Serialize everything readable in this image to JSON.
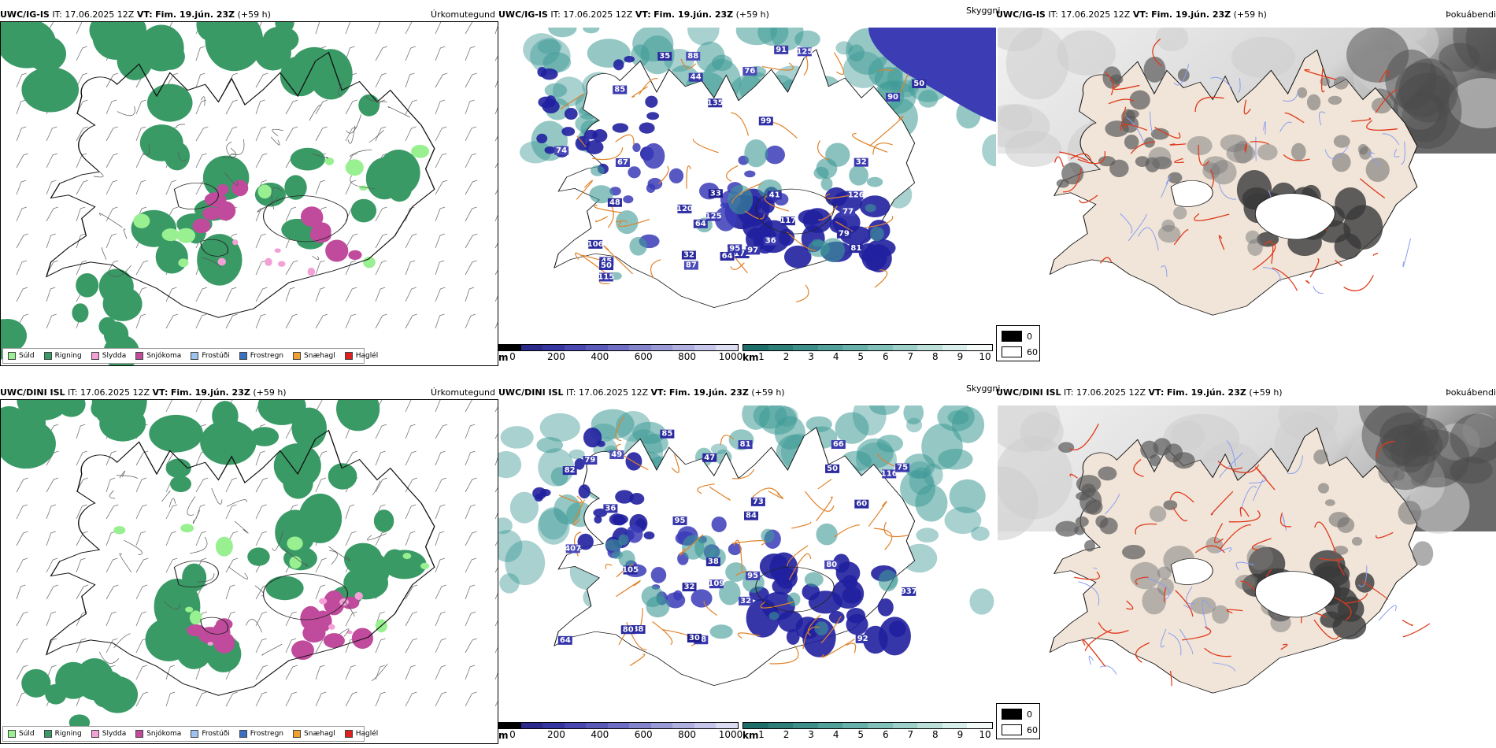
{
  "rows": [
    {
      "model": "UWC/IG-IS",
      "it_label": "IT:",
      "it_value": "17.06.2025 12Z",
      "vt_label": "VT:",
      "vt_value": "Fim. 19.jún. 23Z",
      "lead": "(+59 h)",
      "precip_title": "Úrkomutegund",
      "vis_title": "Skyggni",
      "cloud_title": "Þokuábendi",
      "vis_labels": [
        "135",
        "125",
        "120",
        "115",
        "125",
        "117",
        "126",
        "87",
        "64",
        "32",
        "81",
        "67",
        "171",
        "44",
        "106",
        "85",
        "88",
        "99",
        "48",
        "45",
        "90",
        "77",
        "50",
        "95",
        "33",
        "35",
        "41",
        "64",
        "32",
        "36",
        "74",
        "76",
        "79",
        "91",
        "50",
        "97"
      ],
      "vis_colors": [
        "#2a2a9e",
        "#3a3aae",
        "#2e2ea6",
        "#3636aa",
        "#4040b4",
        "#2a2a9e",
        "#3a3aae",
        "#4a4ab8",
        "#2a2a9e",
        "#3a3aae",
        "#2a2a9e",
        "#4040b4",
        "#2e2ea6",
        "#3636aa",
        "#2a2a9e",
        "#3a3aae",
        "#4a4ab8",
        "#2e2ea6",
        "#2a2a9e",
        "#3636aa",
        "#3a3aae",
        "#4040b4",
        "#2a2a9e",
        "#3636aa",
        "#1c1c8e",
        "#2a2a9e",
        "#2e2ea6",
        "#3636aa",
        "#2a2a9e",
        "#3a3aae",
        "#4a4ab8",
        "#4a4ab8",
        "#2a2a9e",
        "#3a3aae",
        "#2e2ea6",
        "#3636aa"
      ]
    },
    {
      "model": "UWC/DINI ISL",
      "it_label": "IT:",
      "it_value": "17.06.2025 12Z",
      "vt_label": "VT:",
      "vt_value": "Fim. 19.jún. 23Z",
      "lead": "(+59 h)",
      "precip_title": "Úrkomutegund",
      "vis_title": "Skyggni",
      "cloud_title": "Þokuábendi",
      "vis_labels": [
        "32",
        "116",
        "82",
        "92",
        "95",
        "60",
        "79",
        "407",
        "85",
        "109",
        "50",
        "80",
        "38",
        "64",
        "84",
        "66",
        "49",
        "937",
        "38",
        "81",
        "38",
        "32",
        "47",
        "36",
        "30",
        "105",
        "73",
        "95",
        "80",
        "75"
      ],
      "vis_colors": [
        "#2a2a9e",
        "#3a3aae",
        "#2e2ea6",
        "#3636aa",
        "#4040b4",
        "#2a2a9e",
        "#3a3aae",
        "#4a4ab8",
        "#2a2a9e",
        "#3a3aae",
        "#2a2a9e",
        "#4040b4",
        "#2e2ea6",
        "#3636aa",
        "#2a2a9e",
        "#3a3aae",
        "#4a4ab8",
        "#2e2ea6",
        "#2a2a9e",
        "#3636aa",
        "#3a3aae",
        "#4040b4",
        "#2a2a9e",
        "#3636aa",
        "#1c1c8e",
        "#2a2a9e",
        "#2e2ea6",
        "#3636aa",
        "#2a2a9e",
        "#3a3aae"
      ]
    }
  ],
  "precip_legend": [
    {
      "label": "Súld",
      "color": "#98f090"
    },
    {
      "label": "Rigning",
      "color": "#3a9a66"
    },
    {
      "label": "Slydda",
      "color": "#f2a0d6"
    },
    {
      "label": "Snjókoma",
      "color": "#c04a9c"
    },
    {
      "label": "Frostúði",
      "color": "#9cc4f0"
    },
    {
      "label": "Frostregn",
      "color": "#3a70c0"
    },
    {
      "label": "Snæhagl",
      "color": "#f0a030"
    },
    {
      "label": "Haglél",
      "color": "#e02020"
    }
  ],
  "colors": {
    "rain": "#3a9a66",
    "drizzle": "#98f090",
    "snow": "#c04a9c",
    "sleet": "#f2a0d6",
    "fog_teal": "#3e9a96",
    "fog_deep": "#2020a0",
    "land": "#f1e5d9",
    "road_orange": "#e0822a",
    "road_red": "#e03a1a",
    "river_blue": "#8a9ef0",
    "coast": "#111111"
  },
  "height_bar": {
    "unit": "m",
    "ticks": [
      "0",
      "200",
      "400",
      "600",
      "800",
      "1000"
    ],
    "colors": [
      "#000000",
      "#2a2a8a",
      "#3636a0",
      "#4848b0",
      "#5a5ab8",
      "#6e6ec4",
      "#8484cc",
      "#9a9ad6",
      "#b0b0e0",
      "#c6c6ea",
      "#dcdcf2"
    ]
  },
  "km_bar": {
    "unit": "km",
    "ticks": [
      "1",
      "2",
      "3",
      "4",
      "5",
      "6",
      "7",
      "8",
      "9",
      "10"
    ],
    "colors": [
      "#1e6e6a",
      "#2e7e7a",
      "#3e8e8a",
      "#52a09a",
      "#68b0aa",
      "#82c0ba",
      "#9ed0ca",
      "#bcdfda",
      "#d8eeea",
      "#f4faf8"
    ]
  },
  "cloud_legend": [
    {
      "label": "0",
      "color": "#000000"
    },
    {
      "label": "60",
      "color": "#ffffff"
    }
  ]
}
